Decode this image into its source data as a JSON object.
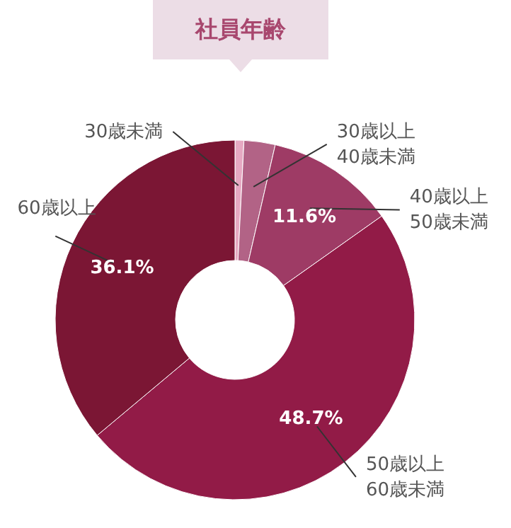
{
  "chart_data": {
    "type": "donut",
    "title": "社員年齢",
    "categories": [
      "30歳未満",
      "30歳以上\n40歳未満",
      "40歳以上\n50歳未満",
      "50歳以上\n60歳未満",
      "60歳以上"
    ],
    "values": [
      0.8,
      2.8,
      11.6,
      48.7,
      36.1
    ],
    "value_labels": [
      null,
      null,
      "11.6%",
      "48.7%",
      "36.1%"
    ],
    "colors": [
      "#e6a9c2",
      "#b26386",
      "#9e3b65",
      "#921b47",
      "#7b1634"
    ]
  }
}
